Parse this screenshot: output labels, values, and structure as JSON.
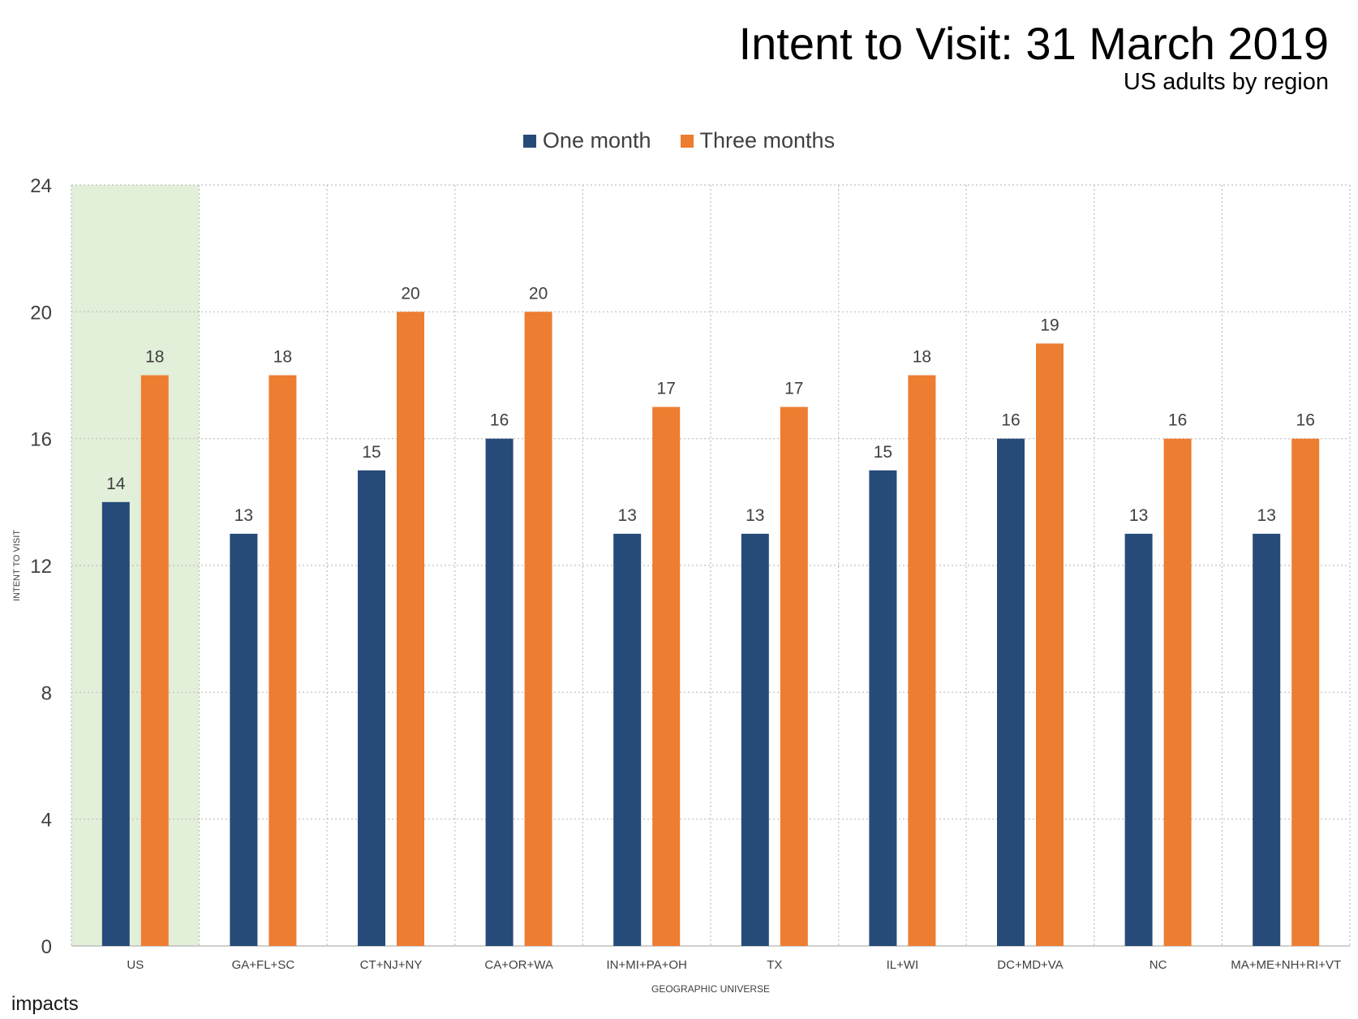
{
  "title": "Intent to Visit: 31 March 2019",
  "subtitle": "US adults by region",
  "logo_text": "impacts",
  "chart_data": {
    "type": "bar",
    "title": "Intent to Visit: 31 March 2019",
    "subtitle": "US adults by region",
    "xlabel": "GEOGRAPHIC UNIVERSE",
    "ylabel": "INTENT TO VISIT",
    "ylim": [
      0,
      24
    ],
    "yticks": [
      0,
      4,
      8,
      12,
      16,
      20,
      24
    ],
    "grid": true,
    "legend_position": "top-center",
    "categories": [
      "US",
      "GA+FL+SC",
      "CT+NJ+NY",
      "CA+OR+WA",
      "IN+MI+PA+OH",
      "TX",
      "IL+WI",
      "DC+MD+VA",
      "NC",
      "MA+ME+NH+RI+VT"
    ],
    "highlight_category": "US",
    "highlight_color": "#e2efd9",
    "series": [
      {
        "name": "One month",
        "color": "#264b78",
        "values": [
          14,
          13,
          15,
          16,
          13,
          13,
          15,
          16,
          13,
          13
        ]
      },
      {
        "name": "Three months",
        "color": "#ed7d31",
        "values": [
          18,
          18,
          20,
          20,
          17,
          17,
          18,
          19,
          16,
          16
        ]
      }
    ]
  }
}
